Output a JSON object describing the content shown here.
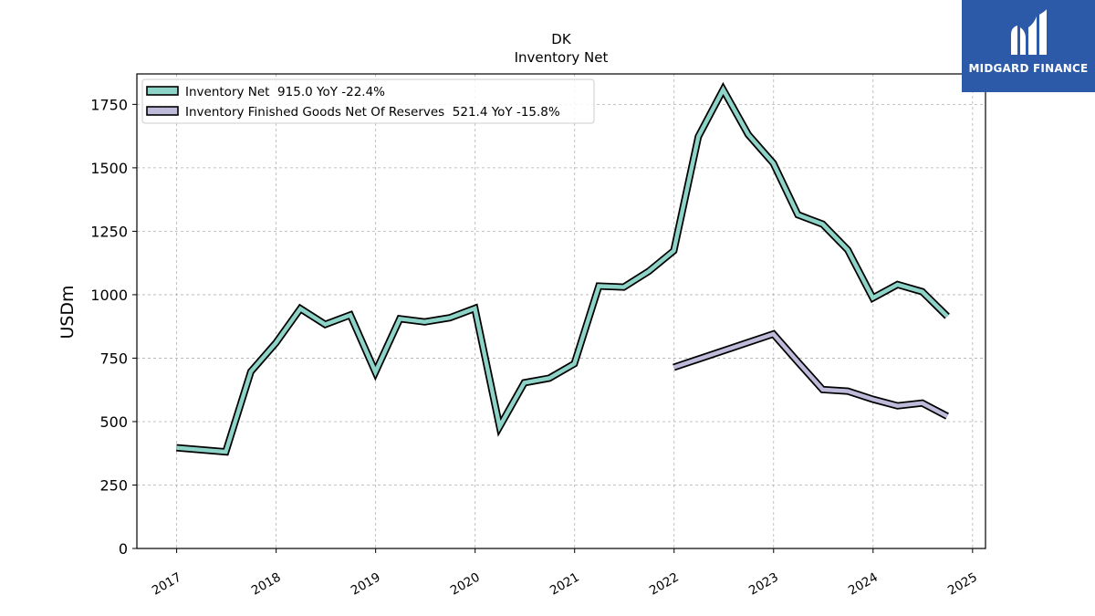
{
  "title": "DK",
  "subtitle": "Inventory Net",
  "brand": {
    "name": "MIDGARD FINANCE",
    "bg_color": "#2d5aa8",
    "text_color": "#ffffff",
    "icon": "midgard-logo-icon"
  },
  "chart_data": {
    "type": "line",
    "title": "DK",
    "subtitle": "Inventory Net",
    "xlabel": "",
    "ylabel": "USDm",
    "xlim": [
      2016.6,
      2025.13
    ],
    "ylim": [
      0,
      1870
    ],
    "yticks": [
      0,
      250,
      500,
      750,
      1000,
      1250,
      1500,
      1750
    ],
    "xticks": [
      2017,
      2018,
      2019,
      2020,
      2021,
      2022,
      2023,
      2024,
      2025
    ],
    "xtick_labels": [
      "2017",
      "2018",
      "2019",
      "2020",
      "2021",
      "2022",
      "2023",
      "2024",
      "2025"
    ],
    "grid": true,
    "legend_position": "top-left",
    "legend": [
      "Inventory Net  915.0 YoY -22.4%",
      "Inventory Finished Goods Net Of Reserves  521.4 YoY -15.8%"
    ],
    "series": [
      {
        "name": "Inventory Net",
        "color": "#8dd3c7",
        "x": [
          "2016-12-31",
          "2017-06-30",
          "2017-09-30",
          "2017-12-31",
          "2018-03-31",
          "2018-06-30",
          "2018-09-30",
          "2018-12-31",
          "2019-03-31",
          "2019-06-30",
          "2019-09-30",
          "2019-12-31",
          "2020-03-31",
          "2020-06-30",
          "2020-09-30",
          "2020-12-31",
          "2021-03-31",
          "2021-06-30",
          "2021-09-30",
          "2021-12-31",
          "2022-03-31",
          "2022-06-30",
          "2022-09-30",
          "2022-12-31",
          "2023-03-31",
          "2023-06-30",
          "2023-09-30",
          "2023-12-31",
          "2024-03-31",
          "2024-06-30",
          "2024-09-30"
        ],
        "values": [
          397,
          381,
          697,
          810,
          945,
          883,
          920,
          695,
          905,
          893,
          909,
          946,
          480,
          653,
          671,
          728,
          1034,
          1030,
          1092,
          1173,
          1623,
          1808,
          1631,
          1518,
          1315,
          1278,
          1177,
          987,
          1040,
          1012,
          915
        ]
      },
      {
        "name": "Inventory Finished Goods Net Of Reserves",
        "color": "#bebada",
        "x": [
          "2021-12-31",
          "2022-12-31",
          "2023-03-31",
          "2023-06-30",
          "2023-09-30",
          "2023-12-31",
          "2024-03-31",
          "2024-06-30",
          "2024-09-30"
        ],
        "values": [
          714,
          845,
          735,
          626,
          620,
          588,
          562,
          573,
          521
        ]
      }
    ]
  }
}
